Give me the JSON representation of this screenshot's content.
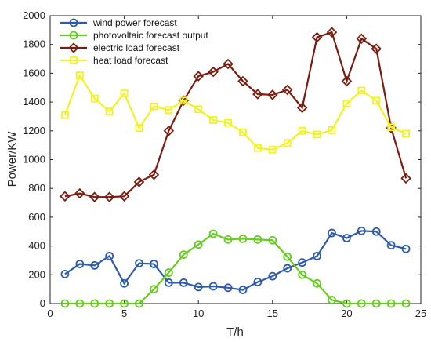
{
  "chart_data": {
    "type": "line",
    "xlabel": "T/h",
    "ylabel": "Power/KW",
    "xlim": [
      0,
      25
    ],
    "ylim": [
      0,
      2000
    ],
    "xticks": [
      0,
      5,
      10,
      15,
      20,
      25
    ],
    "yticks": [
      0,
      200,
      400,
      600,
      800,
      1000,
      1200,
      1400,
      1600,
      1800,
      2000
    ],
    "grid": false,
    "legend_position": "top-left",
    "x": [
      1,
      2,
      3,
      4,
      5,
      6,
      7,
      8,
      9,
      10,
      11,
      12,
      13,
      14,
      15,
      16,
      17,
      18,
      19,
      20,
      21,
      22,
      23,
      24
    ],
    "series": [
      {
        "name": "wind power forecast",
        "color": "#2f5aa8",
        "marker": "circle",
        "values": [
          205,
          275,
          265,
          330,
          140,
          280,
          275,
          145,
          145,
          115,
          120,
          110,
          95,
          150,
          190,
          245,
          285,
          330,
          490,
          455,
          505,
          500,
          405,
          380
        ]
      },
      {
        "name": "photovoltaic forecast output",
        "color": "#66cc1f",
        "marker": "circle",
        "values": [
          0,
          0,
          0,
          0,
          0,
          0,
          100,
          215,
          340,
          410,
          485,
          445,
          450,
          445,
          440,
          325,
          200,
          140,
          25,
          0,
          0,
          0,
          0,
          0
        ]
      },
      {
        "name": "electric load forecast",
        "color": "#7a1d10",
        "marker": "diamond",
        "values": [
          745,
          765,
          740,
          740,
          745,
          845,
          895,
          1200,
          1410,
          1580,
          1610,
          1665,
          1545,
          1455,
          1450,
          1485,
          1360,
          1850,
          1885,
          1545,
          1840,
          1770,
          1220,
          870
        ]
      },
      {
        "name": "heat load forecast",
        "color": "#f2f222",
        "marker": "square",
        "values": [
          1310,
          1585,
          1425,
          1335,
          1460,
          1220,
          1370,
          1345,
          1410,
          1350,
          1275,
          1255,
          1190,
          1080,
          1070,
          1115,
          1200,
          1175,
          1205,
          1390,
          1480,
          1410,
          1225,
          1180
        ]
      }
    ]
  }
}
